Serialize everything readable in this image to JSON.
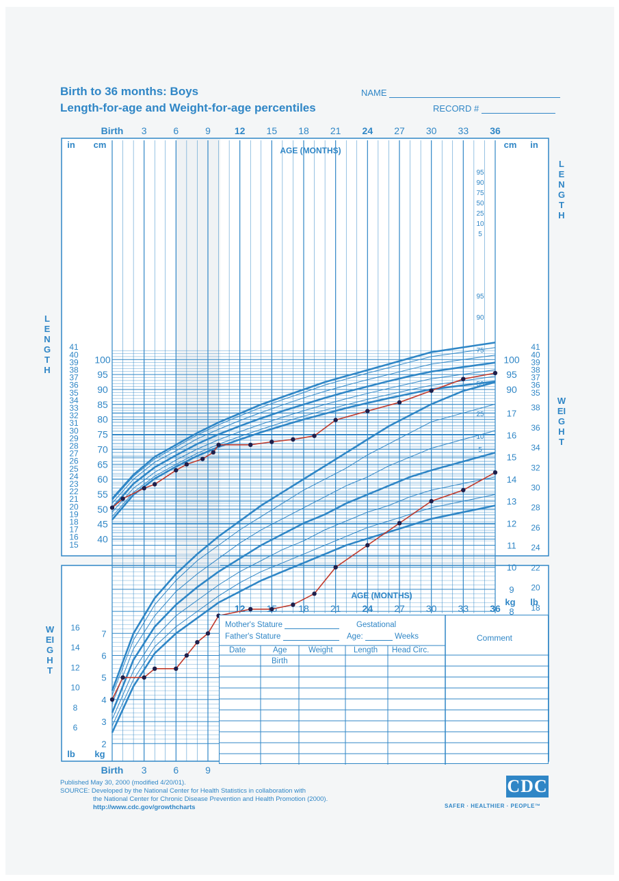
{
  "header": {
    "title_line1": "Birth to 36 months: Boys",
    "title_line2": "Length-for-age and Weight-for-age percentiles",
    "name_label": "NAME",
    "record_label": "RECORD #"
  },
  "labels": {
    "age_months": "AGE (MONTHS)",
    "length_side": "LENGTH",
    "weight_side": "WEIGHT",
    "cm": "cm",
    "in": "in",
    "kg": "kg",
    "lb": "lb",
    "birth": "Birth"
  },
  "table": {
    "mothers_stature": "Mother's Stature",
    "fathers_stature": "Father's Stature",
    "gestational": "Gestational",
    "age_weeks_a": "Age:",
    "age_weeks_b": "Weeks",
    "comment": "Comment",
    "col_date": "Date",
    "col_age": "Age",
    "col_weight": "Weight",
    "col_length": "Length",
    "col_head": "Head Circ.",
    "row1_age": "Birth"
  },
  "footer": {
    "line1": "Published May 30, 2000 (modified 4/20/01).",
    "line2": "SOURCE: Developed by the National Center for Health Statistics in collaboration with",
    "line3": "the National Center for Chronic Disease Prevention and Health Promotion (2000).",
    "line4": "http://www.cdc.gov/growthcharts"
  },
  "logo": {
    "text": "CDC",
    "tagline": "SAFER · HEALTHIER · PEOPLE™"
  },
  "colors": {
    "chart_blue": "#2f86c6",
    "plot_red": "#c0392b",
    "plot_dot": "#1f1f4a"
  },
  "chart_data": [
    {
      "type": "line",
      "title": "Length-for-age percentiles",
      "xlabel": "AGE (MONTHS)",
      "ylabel": "LENGTH",
      "y_units": [
        "cm",
        "in"
      ],
      "xlim": [
        0,
        36
      ],
      "ylim": [
        39,
        104
      ],
      "x_ticks": [
        "Birth",
        "3",
        "6",
        "9",
        "12",
        "15",
        "18",
        "21",
        "24",
        "27",
        "30",
        "33",
        "36"
      ],
      "cm_ticks": [
        40,
        45,
        50,
        55,
        60,
        65,
        70,
        75,
        80,
        85,
        90,
        95,
        100
      ],
      "in_ticks": [
        15,
        16,
        17,
        18,
        19,
        20,
        21,
        22,
        23,
        24,
        25,
        26,
        27,
        28,
        29,
        30,
        31,
        32,
        33,
        34,
        35,
        36,
        37,
        38,
        39,
        40,
        41
      ],
      "percentile_labels": [
        "95",
        "90",
        "75",
        "50",
        "25",
        "10",
        "5"
      ],
      "measurements": {
        "x": [
          0,
          1,
          3,
          4,
          6,
          7,
          8.5,
          9.5,
          10,
          13,
          15,
          17,
          19,
          21,
          24,
          27,
          30,
          33,
          36
        ],
        "y": [
          50.5,
          53.5,
          57,
          58.3,
          63,
          65,
          66.8,
          69,
          71.5,
          71.5,
          72.5,
          73.3,
          74.5,
          79.8,
          82.8,
          85.7,
          89.6,
          93.5,
          95.5
        ]
      }
    },
    {
      "type": "line",
      "title": "Weight-for-age percentiles",
      "xlabel": "AGE (MONTHS)",
      "ylabel": "WEIGHT",
      "y_units": [
        "kg",
        "lb"
      ],
      "xlim": [
        0,
        36
      ],
      "ylim": [
        1.6,
        18.4
      ],
      "x_ticks": [
        "Birth",
        "3",
        "6",
        "9",
        "12",
        "15",
        "18",
        "21",
        "24",
        "27",
        "30",
        "33",
        "36"
      ],
      "kg_ticks": [
        2,
        3,
        4,
        5,
        6,
        7,
        8,
        9,
        10,
        11,
        12,
        13,
        14,
        15,
        16,
        17
      ],
      "lb_ticks": [
        6,
        8,
        10,
        12,
        14,
        16,
        18,
        20,
        22,
        24,
        26,
        28,
        30,
        32,
        34,
        36,
        38
      ],
      "percentile_labels": [
        "95",
        "90",
        "75",
        "50",
        "25",
        "10",
        "5"
      ],
      "measurements": {
        "x": [
          0,
          1,
          3,
          4,
          6,
          7,
          8,
          9,
          10,
          13,
          15,
          17,
          19,
          21,
          24,
          27,
          30,
          33,
          36
        ],
        "y": [
          4.0,
          5.0,
          5.0,
          5.4,
          5.4,
          6.0,
          6.6,
          7.0,
          7.8,
          8.1,
          8.1,
          8.3,
          8.8,
          10.0,
          11.0,
          12.0,
          13.0,
          13.5,
          14.3
        ]
      }
    }
  ]
}
